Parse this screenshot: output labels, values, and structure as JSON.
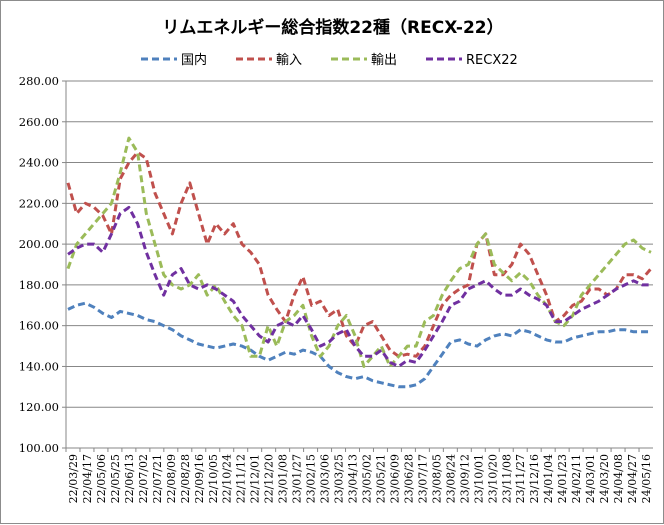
{
  "chart_data": {
    "type": "line",
    "title": "リムエネルギー総合指数22種（RECX-22）",
    "xlabel": "",
    "ylabel": "",
    "ylim": [
      100,
      280
    ],
    "yticks": [
      "100.00",
      "120.00",
      "140.00",
      "160.00",
      "180.00",
      "200.00",
      "220.00",
      "240.00",
      "260.00",
      "280.00"
    ],
    "grid": true,
    "legend_position": "top",
    "x_tick_labels": [
      "22/03/29",
      "22/04/17",
      "22/05/06",
      "22/05/25",
      "22/06/13",
      "22/07/02",
      "22/07/21",
      "22/08/09",
      "22/08/28",
      "22/09/16",
      "22/10/05",
      "22/10/24",
      "22/11/12",
      "22/12/01",
      "22/12/20",
      "23/01/08",
      "23/01/27",
      "23/02/15",
      "23/03/06",
      "23/03/25",
      "23/04/13",
      "23/05/02",
      "23/05/21",
      "23/06/09",
      "23/06/28",
      "23/07/17",
      "23/08/05",
      "23/08/24",
      "23/09/12",
      "23/10/01",
      "23/10/20",
      "23/11/08",
      "23/11/27",
      "23/12/16",
      "24/01/04",
      "24/01/23",
      "24/02/11",
      "24/03/01",
      "24/03/20",
      "24/04/08",
      "24/04/27",
      "24/05/16"
    ],
    "series": [
      {
        "name": "国内",
        "color": "#4f81bd",
        "values": [
          168,
          170,
          171,
          169,
          166,
          164,
          167,
          166,
          165,
          163,
          162,
          160,
          158,
          155,
          153,
          151,
          150,
          149,
          150,
          151,
          150,
          148,
          145,
          143,
          145,
          147,
          146,
          148,
          147,
          145,
          140,
          137,
          135,
          134,
          135,
          133,
          132,
          131,
          130,
          130,
          131,
          134,
          140,
          146,
          152,
          153,
          151,
          150,
          153,
          155,
          156,
          155,
          158,
          157,
          155,
          153,
          152,
          152,
          154,
          155,
          156,
          157,
          157,
          158,
          158,
          157,
          157,
          157
        ]
      },
      {
        "name": "輸入",
        "color": "#c0504d",
        "values": [
          230,
          215,
          220,
          218,
          214,
          205,
          232,
          240,
          245,
          242,
          225,
          215,
          205,
          220,
          230,
          215,
          200,
          210,
          205,
          210,
          200,
          196,
          190,
          175,
          168,
          162,
          175,
          184,
          170,
          172,
          165,
          168,
          155,
          150,
          160,
          162,
          155,
          148,
          145,
          146,
          145,
          150,
          160,
          170,
          175,
          178,
          180,
          200,
          205,
          185,
          185,
          190,
          200,
          195,
          185,
          175,
          162,
          165,
          170,
          172,
          178,
          178,
          175,
          178,
          185,
          185,
          183,
          188
        ]
      },
      {
        "name": "輸出",
        "color": "#9bbb59",
        "values": [
          188,
          200,
          205,
          210,
          215,
          220,
          235,
          252,
          245,
          215,
          200,
          185,
          180,
          178,
          180,
          185,
          175,
          180,
          172,
          165,
          160,
          145,
          145,
          160,
          150,
          162,
          165,
          170,
          155,
          145,
          150,
          160,
          165,
          155,
          140,
          145,
          150,
          140,
          145,
          150,
          150,
          162,
          165,
          175,
          182,
          188,
          190,
          200,
          205,
          190,
          186,
          182,
          186,
          182,
          175,
          170,
          162,
          160,
          165,
          175,
          180,
          185,
          190,
          195,
          200,
          202,
          198,
          196
        ]
      },
      {
        "name": "RECX22",
        "color": "#7030a0",
        "values": [
          195,
          198,
          200,
          200,
          196,
          205,
          215,
          218,
          210,
          196,
          185,
          175,
          185,
          188,
          180,
          178,
          180,
          178,
          175,
          172,
          165,
          160,
          155,
          152,
          160,
          162,
          160,
          165,
          158,
          150,
          152,
          156,
          158,
          150,
          145,
          145,
          148,
          142,
          140,
          143,
          142,
          148,
          155,
          162,
          170,
          172,
          178,
          180,
          182,
          178,
          175,
          175,
          178,
          175,
          173,
          170,
          162,
          162,
          165,
          168,
          170,
          172,
          175,
          178,
          180,
          182,
          180,
          180
        ]
      }
    ]
  }
}
